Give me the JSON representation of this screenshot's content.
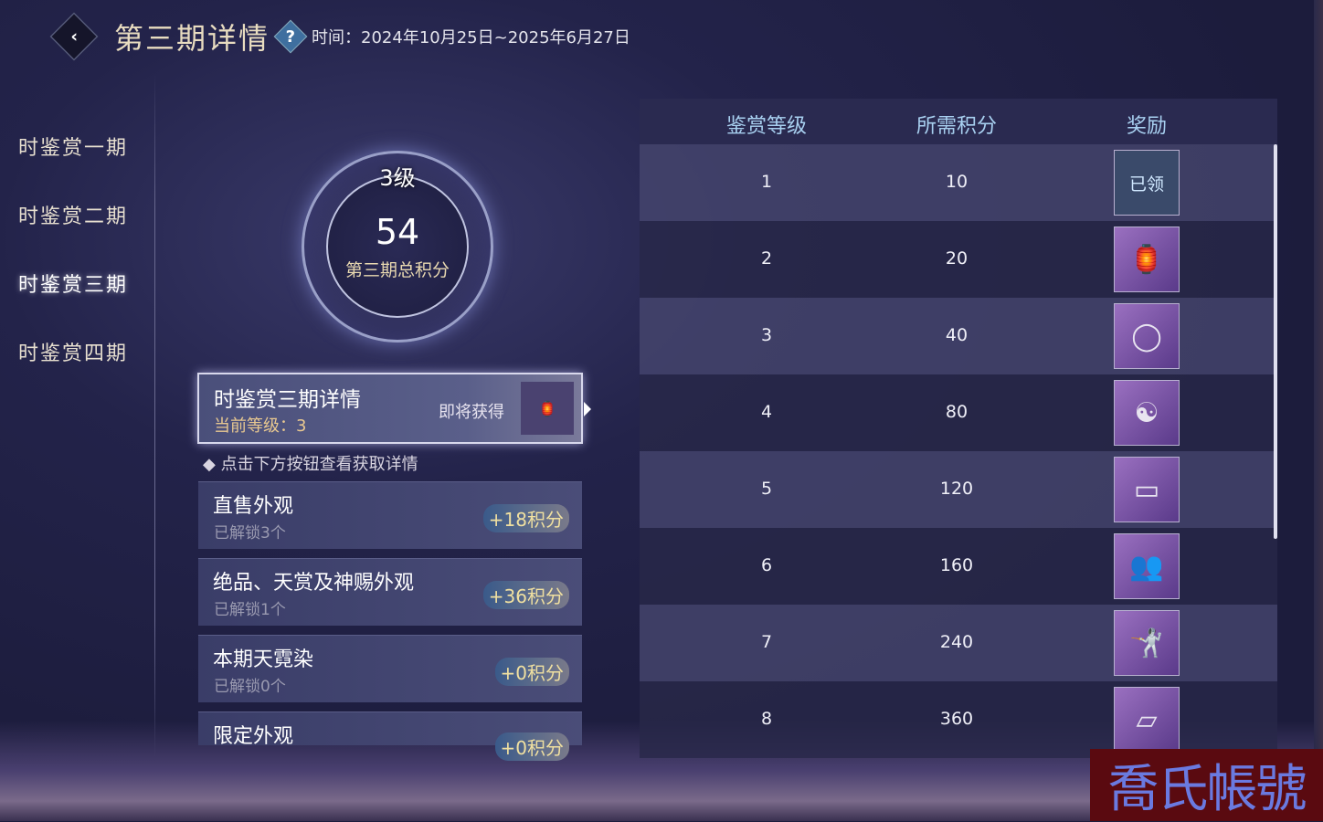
{
  "header": {
    "title": "第三期详情",
    "help_icon": "question-icon",
    "time": "时间：2024年10月25日~2025年6月27日"
  },
  "nav": {
    "items": [
      {
        "label": "时鉴赏一期"
      },
      {
        "label": "时鉴赏二期"
      },
      {
        "label": "时鉴赏三期",
        "active": true
      },
      {
        "label": "时鉴赏四期"
      }
    ]
  },
  "ring": {
    "level": "3级",
    "score": "54",
    "label": "第三期总积分"
  },
  "detail": {
    "title": "时鉴赏三期详情",
    "level": "当前等级：3",
    "soon": "即将获得"
  },
  "hint": "点击下方按钮查看获取详情",
  "sources": [
    {
      "name": "直售外观",
      "sub": "已解锁3个",
      "points": "+18积分"
    },
    {
      "name": "绝品、天赏及神赐外观",
      "sub": "已解锁1个",
      "points": "+36积分"
    },
    {
      "name": "本期天霓染",
      "sub": "已解锁0个",
      "points": "+0积分"
    },
    {
      "name": "限定外观",
      "sub": "",
      "points": "+0积分"
    }
  ],
  "table": {
    "headers": [
      "鉴赏等级",
      "所需积分",
      "奖励"
    ],
    "rows": [
      {
        "level": "1",
        "points": "10",
        "reward": "已领",
        "claimed": true
      },
      {
        "level": "2",
        "points": "20",
        "reward": "🏮"
      },
      {
        "level": "3",
        "points": "40",
        "reward": "◯"
      },
      {
        "level": "4",
        "points": "80",
        "reward": "☯"
      },
      {
        "level": "5",
        "points": "120",
        "reward": "▭"
      },
      {
        "level": "6",
        "points": "160",
        "reward": "👥"
      },
      {
        "level": "7",
        "points": "240",
        "reward": "🤺"
      },
      {
        "level": "8",
        "points": "360",
        "reward": "▱"
      }
    ]
  },
  "watermark": "喬氏帳號"
}
